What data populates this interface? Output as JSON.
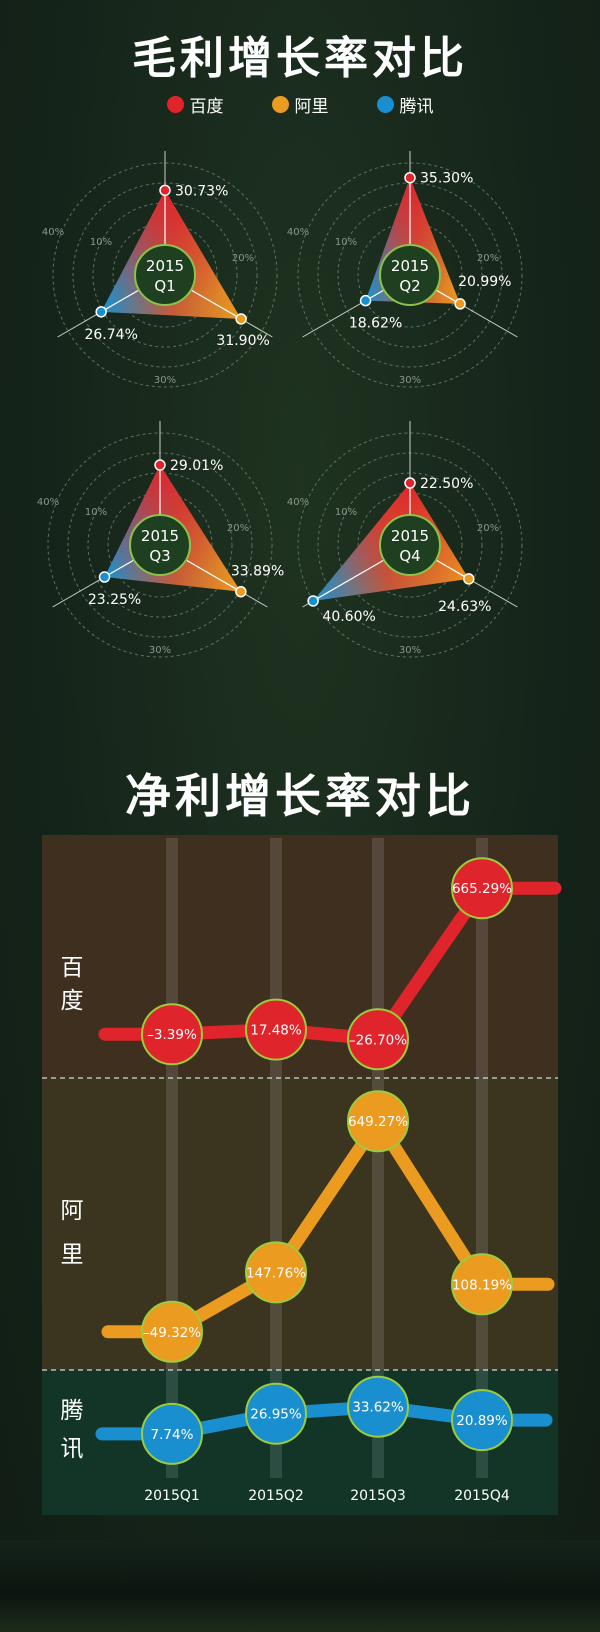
{
  "colors": {
    "baidu": "#e0242c",
    "alibaba": "#eb9b1f",
    "tencent": "#1a8fcf",
    "background": "#18271a",
    "panel_baidu": "#3e2f1f",
    "panel_alibaba": "#3b3520",
    "panel_tencent": "#123528"
  },
  "gross": {
    "title": "毛利增长率对比",
    "legend": [
      {
        "name": "百度",
        "color_key": "baidu"
      },
      {
        "name": "阿里",
        "color_key": "alibaba"
      },
      {
        "name": "腾讯",
        "color_key": "tencent"
      }
    ]
  },
  "net": {
    "title": "净利增长率对比",
    "company_labels": [
      "百 度",
      "阿 里",
      "腾 讯"
    ]
  },
  "chart_data": [
    {
      "type": "radar",
      "title": "毛利增长率对比",
      "ring_labels": [
        "10%",
        "20%",
        "30%",
        "40%"
      ],
      "series_names": [
        "百度",
        "阿里",
        "腾讯"
      ],
      "panels": [
        {
          "label_year": "2015",
          "label_quarter": "Q1",
          "values": [
            30.73,
            31.9,
            26.74
          ],
          "labels": [
            "30.73%",
            "31.90%",
            "26.74%"
          ]
        },
        {
          "label_year": "2015",
          "label_quarter": "Q2",
          "values": [
            35.3,
            20.99,
            18.62
          ],
          "labels": [
            "35.30%",
            "20.99%",
            "18.62%"
          ]
        },
        {
          "label_year": "2015",
          "label_quarter": "Q3",
          "values": [
            29.01,
            33.89,
            23.25
          ],
          "labels": [
            "29.01%",
            "33.89%",
            "23.25%"
          ]
        },
        {
          "label_year": "2015",
          "label_quarter": "Q4",
          "values": [
            22.5,
            24.63,
            40.6
          ],
          "labels": [
            "22.50%",
            "24.63%",
            "40.60%"
          ]
        }
      ]
    },
    {
      "type": "line",
      "title": "净利增长率对比",
      "categories": [
        "2015Q1",
        "2015Q2",
        "2015Q3",
        "2015Q4"
      ],
      "series": [
        {
          "name": "百度",
          "color_key": "baidu",
          "values": [
            -3.39,
            17.48,
            -26.7,
            665.29
          ],
          "labels": [
            "–3.39%",
            "17.48%",
            "–26.70%",
            "665.29%"
          ]
        },
        {
          "name": "阿里",
          "color_key": "alibaba",
          "values": [
            -49.32,
            147.76,
            649.27,
            108.19
          ],
          "labels": [
            "–49.32%",
            "147.76%",
            "649.27%",
            "108.19%"
          ]
        },
        {
          "name": "腾讯",
          "color_key": "tencent",
          "values": [
            7.74,
            26.95,
            33.62,
            20.89
          ],
          "labels": [
            "7.74%",
            "26.95%",
            "33.62%",
            "20.89%"
          ]
        }
      ]
    }
  ]
}
